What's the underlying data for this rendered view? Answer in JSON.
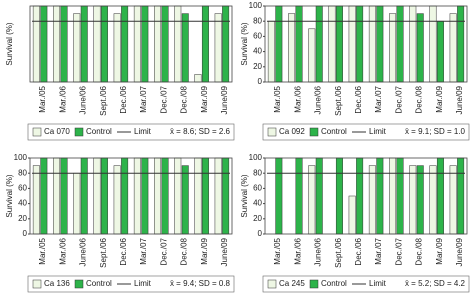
{
  "chart_data": [
    {
      "type": "bar",
      "ylabel": "Survival (%)",
      "ylim": [
        0,
        100
      ],
      "categories": [
        "Mar./05",
        "Mar./06",
        "June/06",
        "Sept./06",
        "Dec./06",
        "Mar./07",
        "Dec./07",
        "Dec./08",
        "Mar./09",
        "June/09"
      ],
      "series": [
        {
          "name": "Ca 070",
          "color": "#eef7e4",
          "values": [
            100,
            100,
            90,
            100,
            90,
            100,
            100,
            100,
            10,
            90
          ]
        },
        {
          "name": "Control",
          "color": "#2db34a",
          "values": [
            100,
            100,
            100,
            100,
            100,
            100,
            100,
            90,
            100,
            100
          ]
        }
      ],
      "limit": {
        "name": "Limit",
        "value": 80
      },
      "stat": "x̄ = 8.6; SD = 2.6"
    },
    {
      "type": "bar",
      "ylabel": "Survival (%)",
      "ylim": [
        0,
        100
      ],
      "yticks": [
        0,
        20,
        40,
        60,
        80,
        100
      ],
      "categories": [
        "Mar./05",
        "Mar./06",
        "June/06",
        "Sept./06",
        "Dec./06",
        "Mar./07",
        "Dec./07",
        "Dec./08",
        "Mar./09",
        "June/09"
      ],
      "series": [
        {
          "name": "Ca 092",
          "color": "#eef7e4",
          "values": [
            80,
            90,
            70,
            100,
            100,
            100,
            90,
            100,
            100,
            90
          ]
        },
        {
          "name": "Control",
          "color": "#2db34a",
          "values": [
            100,
            100,
            100,
            100,
            100,
            100,
            100,
            90,
            80,
            100
          ]
        }
      ],
      "limit": {
        "name": "Limit",
        "value": 80
      },
      "stat": "x̄ = 9.1; SD = 1.0"
    },
    {
      "type": "bar",
      "ylabel": "Survival (%)",
      "ylim": [
        0,
        100
      ],
      "yticks": [
        0,
        20,
        40,
        60,
        80,
        100
      ],
      "categories": [
        "Mar./05",
        "Mar./06",
        "June/06",
        "Sept./06",
        "Dec./06",
        "Mar./07",
        "Dec./07",
        "Dec./08",
        "Mar./09",
        "June/09"
      ],
      "series": [
        {
          "name": "Ca 136",
          "color": "#eef7e4",
          "values": [
            90,
            100,
            80,
            100,
            90,
            100,
            100,
            100,
            100,
            100
          ]
        },
        {
          "name": "Control",
          "color": "#2db34a",
          "values": [
            100,
            100,
            100,
            100,
            100,
            100,
            100,
            90,
            100,
            100
          ]
        }
      ],
      "limit": {
        "name": "Limit",
        "value": 80
      },
      "stat": "x̄ = 9.4; SD = 0.8"
    },
    {
      "type": "bar",
      "ylabel": "Survival (%)",
      "ylim": [
        0,
        100
      ],
      "yticks": [
        0,
        20,
        40,
        60,
        80,
        100
      ],
      "categories": [
        "Mar./05",
        "Mar./06",
        "June/06",
        "Sept./06",
        "Dec./06",
        "Mar./07",
        "Dec./07",
        "Dec./08",
        "Mar./09",
        "June/09"
      ],
      "series": [
        {
          "name": "Ca 245",
          "color": "#eef7e4",
          "values": [
            0,
            0,
            90,
            0,
            50,
            90,
            100,
            90,
            90,
            90
          ]
        },
        {
          "name": "Control",
          "color": "#2db34a",
          "values": [
            100,
            100,
            100,
            100,
            100,
            100,
            100,
            90,
            100,
            100
          ]
        }
      ],
      "limit": {
        "name": "Limit",
        "value": 80
      },
      "stat": "x̄ = 5.2; SD = 4.2"
    }
  ]
}
